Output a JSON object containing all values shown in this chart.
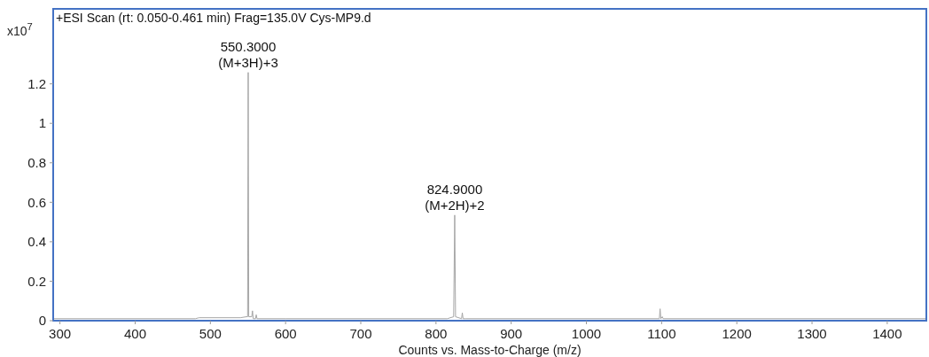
{
  "chart_data": {
    "type": "line",
    "title": "+ESI Scan (rt: 0.050-0.461 min) Frag=135.0V Cys-MP9.d",
    "xlabel": "Counts vs. Mass-to-Charge (m/z)",
    "ylabel": "x10$^{7}$",
    "series": [
      {
        "color": "#a6a6a6",
        "x": [
          291,
          480,
          485,
          540,
          548,
          549.5,
          550.3,
          551,
          555,
          556,
          557,
          560,
          561,
          562,
          600,
          815,
          823.5,
          824.9,
          826,
          834,
          835,
          836,
          840,
          1097,
          1098,
          1099,
          1101,
          1102,
          1452
        ],
        "values": [
          0.01,
          0.01,
          0.015,
          0.015,
          0.02,
          0.02,
          1.258,
          0.02,
          0.02,
          0.05,
          0.01,
          0.01,
          0.03,
          0.01,
          0.01,
          0.01,
          0.02,
          0.535,
          0.02,
          0.01,
          0.04,
          0.01,
          0.01,
          0.01,
          0.06,
          0.01,
          0.02,
          0.01,
          0.01
        ]
      }
    ],
    "xlim": [
      291,
      1452
    ],
    "ylim": [
      0,
      1.58
    ],
    "xticks": [
      300,
      400,
      500,
      600,
      700,
      800,
      900,
      1000,
      1100,
      1200,
      1300,
      1400
    ],
    "yticks": [
      0,
      0.2,
      0.4,
      0.6,
      0.8,
      1,
      1.2
    ],
    "annotations": [
      {
        "text": "550.3000\n(M+3H)+3",
        "x": 550.3,
        "y": 1.258
      },
      {
        "text": "824.9000\n(M+2H)+2",
        "x": 824.9,
        "y": 0.535
      }
    ],
    "grid": false
  }
}
